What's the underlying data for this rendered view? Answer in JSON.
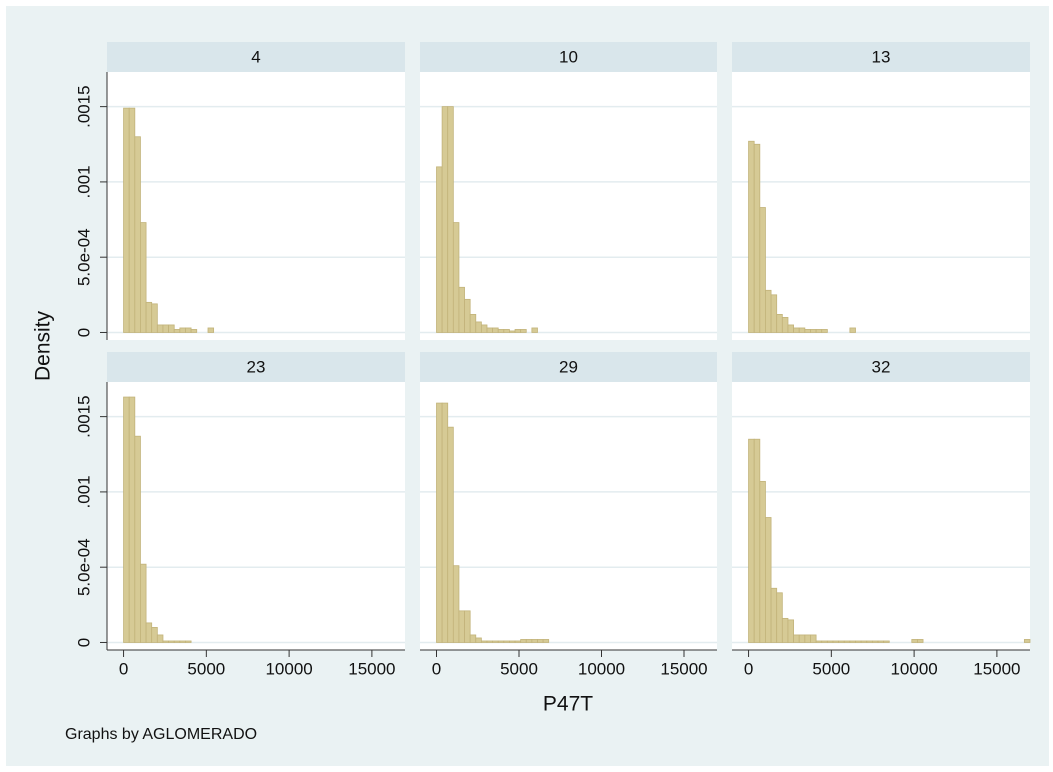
{
  "figure": {
    "y_label": "Density",
    "x_label": "P47T",
    "note": "Graphs by AGLOMERADO"
  },
  "chart_data": [
    {
      "type": "histogram",
      "title": "4",
      "color": "#d6ca95",
      "bins": [
        0,
        340,
        680,
        1020,
        1360,
        1700,
        2040,
        2380,
        2720,
        3060,
        3400,
        3740,
        4080,
        4420,
        4760,
        5100,
        5440,
        5780,
        6120,
        6460,
        6800,
        7140,
        7480,
        7820,
        8160,
        8500,
        8840,
        9180,
        9520,
        9860,
        10200,
        10540,
        10880,
        11220,
        11560,
        11900,
        12240,
        12580,
        12920,
        13260,
        13600,
        13940,
        14280,
        14620,
        14960,
        15300,
        15640,
        15980,
        16320,
        16660,
        17000
      ],
      "values": [
        0.00149,
        0.00149,
        0.0013,
        0.00073,
        0.0002,
        0.00019,
        5e-05,
        5e-05,
        5e-05,
        2e-05,
        3e-05,
        3e-05,
        2e-05,
        0,
        0,
        3e-05,
        0,
        0,
        0,
        0,
        0,
        0,
        0,
        0,
        0,
        0,
        0,
        0,
        0,
        0,
        0,
        0,
        0,
        0,
        0,
        0,
        0,
        0,
        0,
        0,
        0,
        0,
        0,
        0,
        0,
        0,
        0,
        0,
        0,
        0
      ],
      "xlim": [
        -1000,
        17000
      ],
      "ylim": [
        -5e-05,
        0.00173
      ],
      "yticks": [
        0,
        {
          "value": 0.0005,
          "label": "5.0e-04"
        },
        {
          "value": 0.001,
          "label": ".001"
        },
        {
          "value": 0.0015,
          "label": ".0015"
        }
      ]
    },
    {
      "type": "histogram",
      "title": "10",
      "color": "#d6ca95",
      "bins": [
        0,
        340,
        680,
        1020,
        1360,
        1700,
        2040,
        2380,
        2720,
        3060,
        3400,
        3740,
        4080,
        4420,
        4760,
        5100,
        5440,
        5780,
        6120,
        6460,
        6800,
        7140,
        7480,
        7820,
        8160,
        8500,
        8840,
        9180,
        9520,
        9860,
        10200,
        10540,
        10880,
        11220,
        11560,
        11900,
        12240,
        12580,
        12920,
        13260,
        13600,
        13940,
        14280,
        14620,
        14960,
        15300,
        15640,
        15980,
        16320,
        16660,
        17000
      ],
      "values": [
        0.0011,
        0.0015,
        0.0015,
        0.00073,
        0.0003,
        0.00022,
        0.00012,
        7e-05,
        5e-05,
        3e-05,
        3e-05,
        2e-05,
        2e-05,
        1e-05,
        2e-05,
        2e-05,
        0,
        3e-05,
        0,
        0,
        0,
        0,
        0,
        0,
        0,
        0,
        0,
        0,
        0,
        0,
        0,
        0,
        0,
        0,
        0,
        0,
        0,
        0,
        0,
        0,
        0,
        0,
        0,
        0,
        0,
        0,
        0,
        0,
        0,
        0
      ],
      "xlim": [
        -1000,
        17000
      ],
      "ylim": [
        -5e-05,
        0.00173
      ],
      "yticks": [
        0,
        {
          "value": 0.0005,
          "label": "5.0e-04"
        },
        {
          "value": 0.001,
          "label": ".001"
        },
        {
          "value": 0.0015,
          "label": ".0015"
        }
      ]
    },
    {
      "type": "histogram",
      "title": "13",
      "color": "#d6ca95",
      "bins": [
        0,
        340,
        680,
        1020,
        1360,
        1700,
        2040,
        2380,
        2720,
        3060,
        3400,
        3740,
        4080,
        4420,
        4760,
        5100,
        5440,
        5780,
        6120,
        6460,
        6800,
        7140,
        7480,
        7820,
        8160,
        8500,
        8840,
        9180,
        9520,
        9860,
        10200,
        10540,
        10880,
        11220,
        11560,
        11900,
        12240,
        12580,
        12920,
        13260,
        13600,
        13940,
        14280,
        14620,
        14960,
        15300,
        15640,
        15980,
        16320,
        16660,
        17000
      ],
      "values": [
        0.00127,
        0.00125,
        0.00083,
        0.00028,
        0.00025,
        0.00012,
        0.0001,
        5e-05,
        3e-05,
        3e-05,
        2e-05,
        2e-05,
        2e-05,
        2e-05,
        0,
        0,
        0,
        0,
        3e-05,
        0,
        0,
        0,
        0,
        0,
        0,
        0,
        0,
        0,
        0,
        0,
        0,
        0,
        0,
        0,
        0,
        0,
        0,
        0,
        0,
        0,
        0,
        0,
        0,
        0,
        0,
        0,
        0,
        0,
        0,
        0
      ],
      "xlim": [
        -1000,
        17000
      ],
      "ylim": [
        -5e-05,
        0.00173
      ],
      "yticks": [
        0,
        {
          "value": 0.0005,
          "label": "5.0e-04"
        },
        {
          "value": 0.001,
          "label": ".001"
        },
        {
          "value": 0.0015,
          "label": ".0015"
        }
      ]
    },
    {
      "type": "histogram",
      "title": "23",
      "color": "#d6ca95",
      "bins": [
        0,
        340,
        680,
        1020,
        1360,
        1700,
        2040,
        2380,
        2720,
        3060,
        3400,
        3740,
        4080,
        4420,
        4760,
        5100,
        5440,
        5780,
        6120,
        6460,
        6800,
        7140,
        7480,
        7820,
        8160,
        8500,
        8840,
        9180,
        9520,
        9860,
        10200,
        10540,
        10880,
        11220,
        11560,
        11900,
        12240,
        12580,
        12920,
        13260,
        13600,
        13940,
        14280,
        14620,
        14960,
        15300,
        15640,
        15980,
        16320,
        16660,
        17000
      ],
      "values": [
        0.00163,
        0.00163,
        0.00137,
        0.00052,
        0.00013,
        0.0001,
        5e-05,
        1e-05,
        1e-05,
        1e-05,
        1e-05,
        1e-05,
        0,
        0,
        0,
        0,
        0,
        0,
        0,
        0,
        0,
        0,
        0,
        0,
        0,
        0,
        0,
        0,
        0,
        0,
        0,
        0,
        0,
        0,
        0,
        0,
        0,
        0,
        0,
        0,
        0,
        0,
        0,
        0,
        0,
        0,
        0,
        0,
        0,
        0
      ],
      "xlim": [
        -1000,
        17000
      ],
      "ylim": [
        -5e-05,
        0.00173
      ],
      "xticks": [
        0,
        5000,
        10000,
        15000
      ],
      "yticks": [
        0,
        {
          "value": 0.0005,
          "label": "5.0e-04"
        },
        {
          "value": 0.001,
          "label": ".001"
        },
        {
          "value": 0.0015,
          "label": ".0015"
        }
      ]
    },
    {
      "type": "histogram",
      "title": "29",
      "color": "#d6ca95",
      "bins": [
        0,
        340,
        680,
        1020,
        1360,
        1700,
        2040,
        2380,
        2720,
        3060,
        3400,
        3740,
        4080,
        4420,
        4760,
        5100,
        5440,
        5780,
        6120,
        6460,
        6800,
        7140,
        7480,
        7820,
        8160,
        8500,
        8840,
        9180,
        9520,
        9860,
        10200,
        10540,
        10880,
        11220,
        11560,
        11900,
        12240,
        12580,
        12920,
        13260,
        13600,
        13940,
        14280,
        14620,
        14960,
        15300,
        15640,
        15980,
        16320,
        16660,
        17000
      ],
      "values": [
        0.00159,
        0.00159,
        0.00143,
        0.00051,
        0.00021,
        0.00021,
        5e-05,
        3e-05,
        1e-05,
        1e-05,
        1e-05,
        1e-05,
        1e-05,
        1e-05,
        1e-05,
        2e-05,
        2e-05,
        2e-05,
        2e-05,
        2e-05,
        0,
        0,
        0,
        0,
        0,
        0,
        0,
        0,
        0,
        0,
        0,
        0,
        0,
        0,
        0,
        0,
        0,
        0,
        0,
        0,
        0,
        0,
        0,
        0,
        0,
        0,
        0,
        0,
        0,
        0
      ],
      "xlim": [
        -1000,
        17000
      ],
      "ylim": [
        -5e-05,
        0.00173
      ],
      "xticks": [
        0,
        5000,
        10000,
        15000
      ],
      "yticks": [
        0,
        {
          "value": 0.0005,
          "label": "5.0e-04"
        },
        {
          "value": 0.001,
          "label": ".001"
        },
        {
          "value": 0.0015,
          "label": ".0015"
        }
      ]
    },
    {
      "type": "histogram",
      "title": "32",
      "color": "#d6ca95",
      "bins": [
        0,
        340,
        680,
        1020,
        1360,
        1700,
        2040,
        2380,
        2720,
        3060,
        3400,
        3740,
        4080,
        4420,
        4760,
        5100,
        5440,
        5780,
        6120,
        6460,
        6800,
        7140,
        7480,
        7820,
        8160,
        8500,
        8840,
        9180,
        9520,
        9860,
        10200,
        10540,
        10880,
        11220,
        11560,
        11900,
        12240,
        12580,
        12920,
        13260,
        13600,
        13940,
        14280,
        14620,
        14960,
        15300,
        15640,
        15980,
        16320,
        16660,
        17000
      ],
      "values": [
        0.00135,
        0.00135,
        0.00107,
        0.00083,
        0.00036,
        0.00033,
        0.00016,
        0.00015,
        5e-05,
        5e-05,
        5e-05,
        5e-05,
        1e-05,
        1e-05,
        1e-05,
        1e-05,
        1e-05,
        1e-05,
        1e-05,
        1e-05,
        1e-05,
        1e-05,
        1e-05,
        1e-05,
        1e-05,
        0,
        0,
        0,
        0,
        2e-05,
        2e-05,
        0,
        0,
        0,
        0,
        0,
        0,
        0,
        0,
        0,
        0,
        0,
        0,
        0,
        0,
        0,
        0,
        0,
        0,
        2e-05
      ],
      "xlim": [
        -1000,
        17000
      ],
      "ylim": [
        -5e-05,
        0.00173
      ],
      "xticks": [
        0,
        5000,
        10000,
        15000
      ],
      "yticks": [
        0,
        {
          "value": 0.0005,
          "label": "5.0e-04"
        },
        {
          "value": 0.001,
          "label": ".001"
        },
        {
          "value": 0.0015,
          "label": ".0015"
        }
      ]
    }
  ]
}
